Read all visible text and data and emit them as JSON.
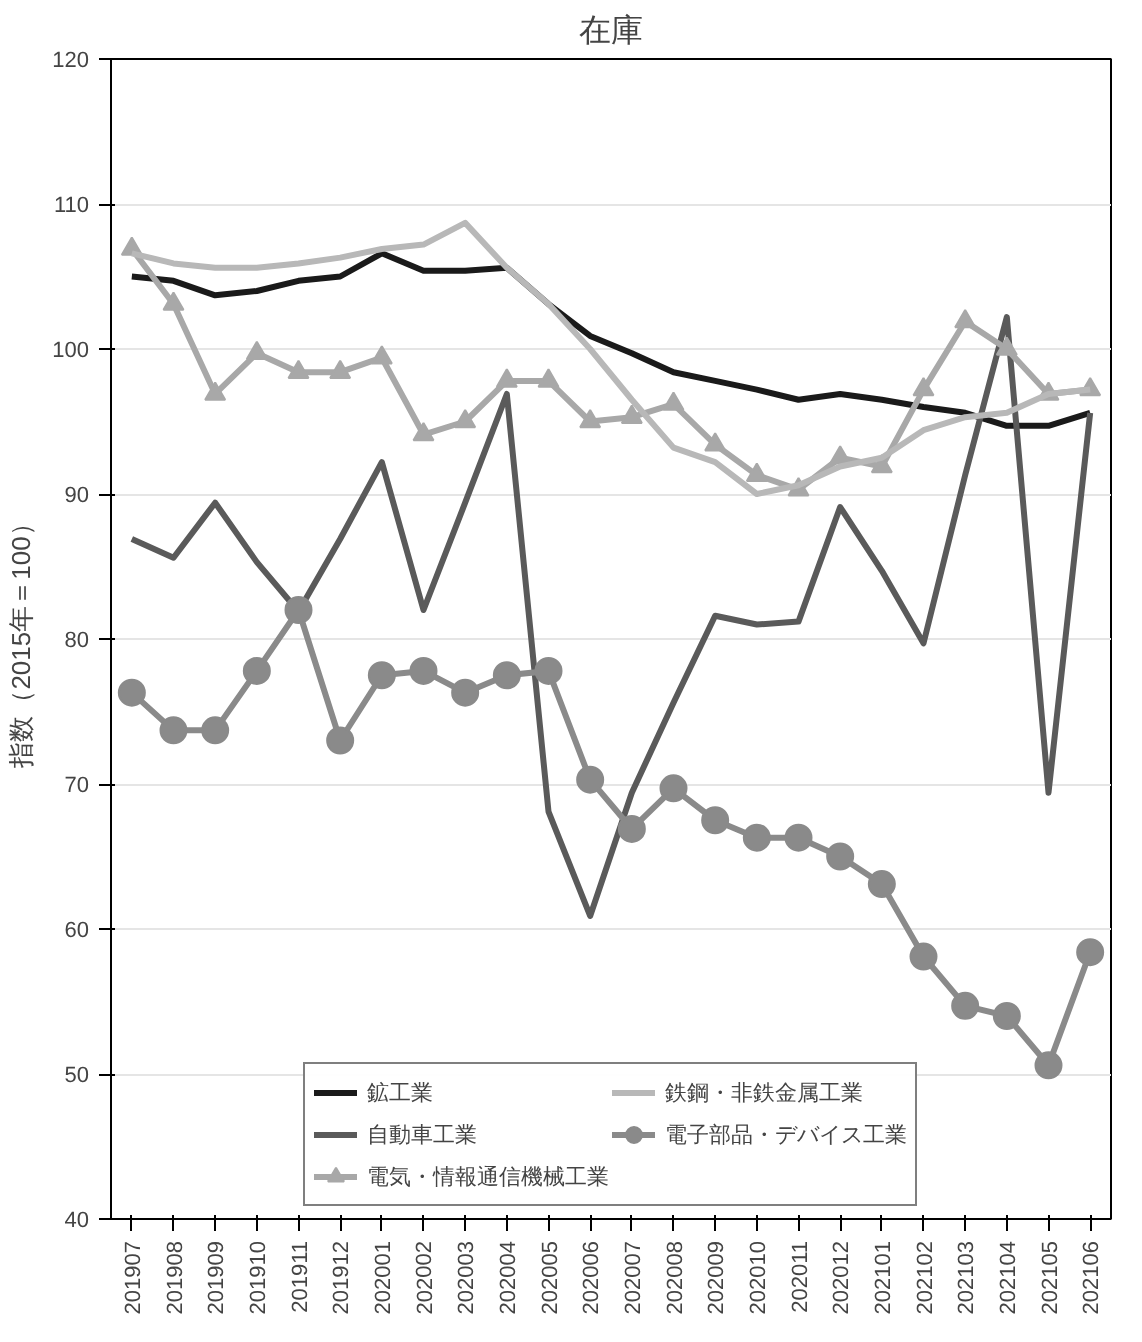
{
  "chart_data": {
    "type": "line",
    "title": "在庫",
    "ylabel": "指数（2015年＝100）",
    "categories": [
      "201907",
      "201908",
      "201909",
      "201910",
      "201911",
      "201912",
      "202001",
      "202002",
      "202003",
      "202004",
      "202005",
      "202006",
      "202007",
      "202008",
      "202009",
      "202010",
      "202011",
      "202012",
      "202101",
      "202102",
      "202103",
      "202104",
      "202105",
      "202106"
    ],
    "ylim": [
      40,
      120
    ],
    "yticks": [
      40,
      50,
      60,
      70,
      80,
      90,
      100,
      110,
      120
    ],
    "grid": "y",
    "legend": "bottom",
    "series": [
      {
        "name": "鉱工業",
        "color": "#1a1a1a",
        "marker": "none",
        "values": [
          105.0,
          104.7,
          103.7,
          104.0,
          104.7,
          105.0,
          106.6,
          105.4,
          105.4,
          105.6,
          103.1,
          100.9,
          99.7,
          98.4,
          97.8,
          97.2,
          96.5,
          96.9,
          96.5,
          96.0,
          95.6,
          94.7,
          94.7,
          95.6
        ]
      },
      {
        "name": "自動車工業",
        "color": "#5a5a5a",
        "marker": "none",
        "values": [
          86.9,
          85.6,
          89.4,
          85.3,
          81.9,
          86.9,
          92.2,
          82.0,
          89.4,
          96.9,
          68.1,
          60.9,
          69.4,
          75.6,
          81.6,
          81.0,
          81.2,
          89.1,
          84.7,
          79.7,
          91.3,
          102.2,
          69.4,
          95.6
        ]
      },
      {
        "name": "電気・情報通信機械工業",
        "color": "#a8a8a8",
        "marker": "triangle",
        "values": [
          106.9,
          103.1,
          96.9,
          99.7,
          98.4,
          98.4,
          99.4,
          94.1,
          95.0,
          97.8,
          97.8,
          95.0,
          95.3,
          96.2,
          93.4,
          91.3,
          90.3,
          92.5,
          91.9,
          97.2,
          101.9,
          100.0,
          96.9,
          97.2
        ]
      },
      {
        "name": "鉄鋼・非鉄金属工業",
        "color": "#b8b8b8",
        "marker": "none",
        "values": [
          106.6,
          105.9,
          105.6,
          105.6,
          105.9,
          106.3,
          106.9,
          107.2,
          108.7,
          105.6,
          103.1,
          100.0,
          96.5,
          93.2,
          92.2,
          90.0,
          90.6,
          91.9,
          92.5,
          94.4,
          95.3,
          95.6,
          96.9,
          97.2
        ]
      },
      {
        "name": "電子部品・デバイス工業",
        "color": "#8a8a8a",
        "marker": "circle",
        "values": [
          76.3,
          73.7,
          73.7,
          77.8,
          82.0,
          73.0,
          77.5,
          77.8,
          76.3,
          77.5,
          77.8,
          70.3,
          66.9,
          69.7,
          67.5,
          66.3,
          66.3,
          65.0,
          63.1,
          58.1,
          54.7,
          54.0,
          50.6,
          58.4
        ]
      }
    ]
  }
}
